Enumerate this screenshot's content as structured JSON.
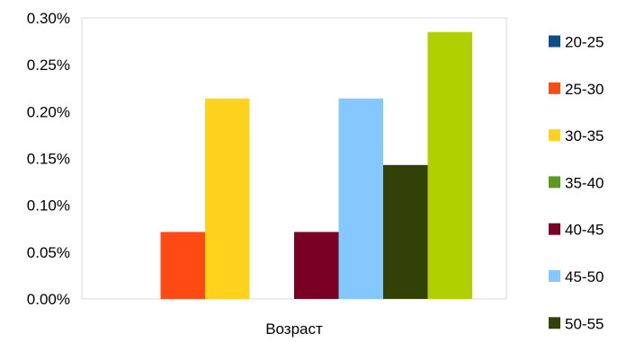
{
  "chart_data": {
    "type": "bar",
    "categories": [
      "Возраст"
    ],
    "xlabel": "",
    "ylabel": "",
    "ylim": [
      0,
      0.003
    ],
    "y_ticks": [
      "0.00%",
      "0.05%",
      "0.10%",
      "0.15%",
      "0.20%",
      "0.25%",
      "0.30%"
    ],
    "y_tick_values": [
      0,
      0.0005,
      0.001,
      0.0015,
      0.002,
      0.0025,
      0.003
    ],
    "grid": false,
    "legend_position": "right",
    "series": [
      {
        "name": "20-25",
        "values": [
          0
        ],
        "color": "#0F4C8A"
      },
      {
        "name": "25-30",
        "values": [
          0.000715
        ],
        "color": "#FF4A14"
      },
      {
        "name": "30-35",
        "values": [
          0.00214
        ],
        "color": "#FFD21E"
      },
      {
        "name": "35-40",
        "values": [
          0
        ],
        "color": "#5A9A1E"
      },
      {
        "name": "40-45",
        "values": [
          0.000715
        ],
        "color": "#7A0026"
      },
      {
        "name": "45-50",
        "values": [
          0.00214
        ],
        "color": "#85C8FF"
      },
      {
        "name": "50-55",
        "values": [
          0.00143
        ],
        "color": "#334008"
      },
      {
        "name": "",
        "values": [
          0.00285
        ],
        "color": "#B0D000"
      }
    ]
  }
}
